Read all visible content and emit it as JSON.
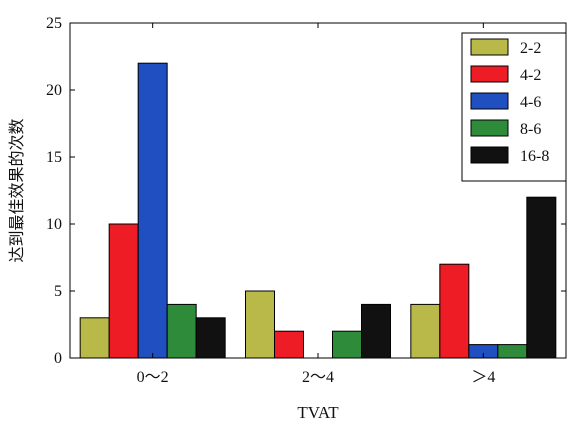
{
  "chart_data": {
    "type": "bar",
    "categories": [
      "0～2",
      "2～4",
      "＞4"
    ],
    "series": [
      {
        "name": "2-2",
        "values": [
          3,
          5,
          4
        ],
        "color": "#b9b94a"
      },
      {
        "name": "4-2",
        "values": [
          10,
          2,
          7
        ],
        "color": "#ee1c24"
      },
      {
        "name": "4-6",
        "values": [
          22,
          0,
          1
        ],
        "color": "#1f4fc0"
      },
      {
        "name": "8-6",
        "values": [
          4,
          2,
          1
        ],
        "color": "#2e8b3a"
      },
      {
        "name": "16-8",
        "values": [
          3,
          4,
          12
        ],
        "color": "#111111"
      }
    ],
    "xlabel": "TVAT",
    "ylabel": "达到最佳效果的次数",
    "ylim": [
      0,
      25
    ],
    "yticks": [
      0,
      5,
      10,
      15,
      20,
      25
    ],
    "legend_position": "top-right",
    "grid": false
  }
}
